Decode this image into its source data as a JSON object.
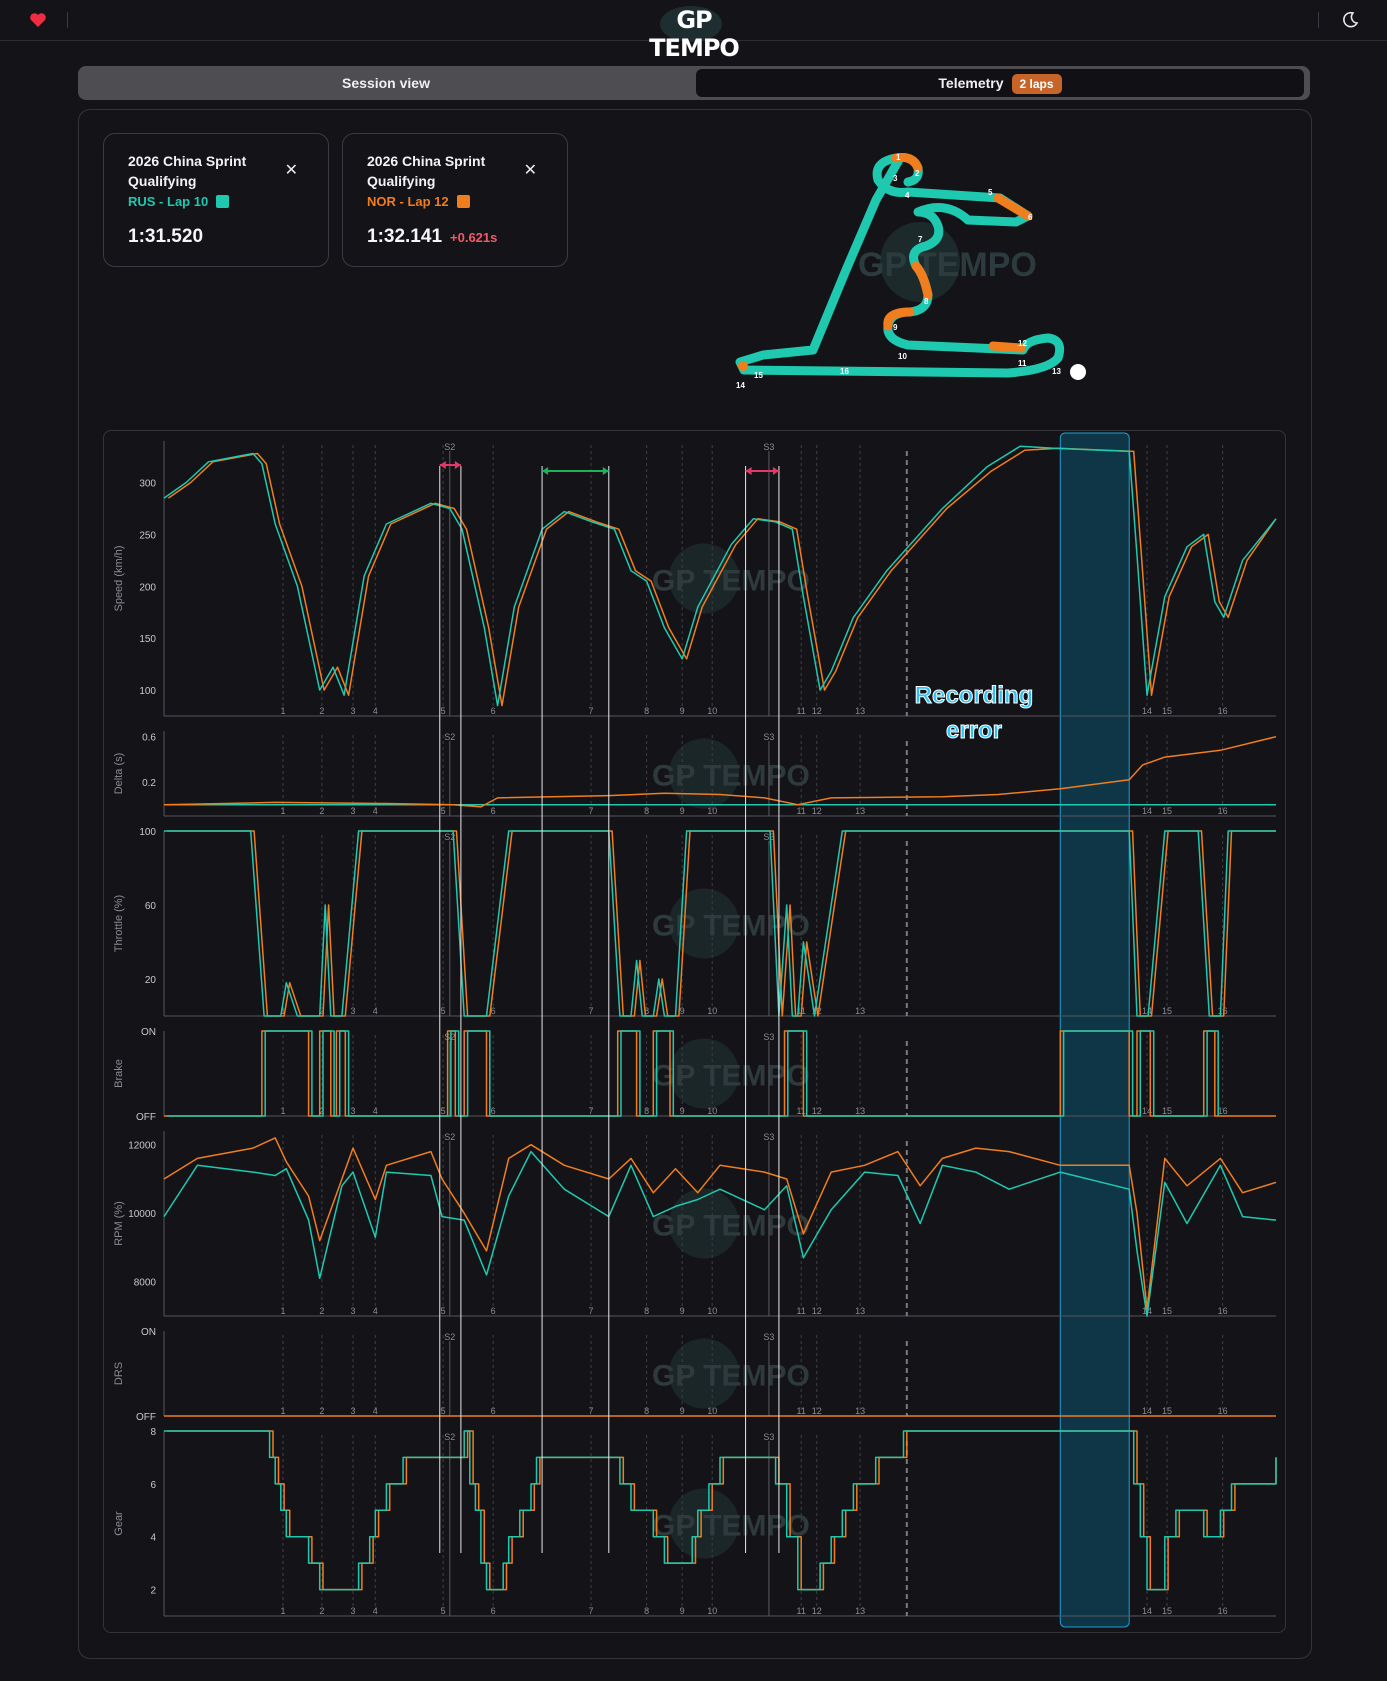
{
  "header": {
    "logo": "GP TEMPO",
    "favorite_icon": "heart-icon",
    "theme_icon": "moon-icon"
  },
  "tabs": {
    "session": "Session view",
    "telemetry": "Telemetry",
    "telemetry_badge": "2 laps"
  },
  "laps": [
    {
      "event": "2026 China Sprint Qualifying",
      "driver_lap": "RUS - Lap 10",
      "time": "1:31.520",
      "delta": "",
      "color": "#1ec9b0"
    },
    {
      "event": "2026 China Sprint Qualifying",
      "driver_lap": "NOR - Lap 12",
      "time": "1:32.141",
      "delta": "+0.621s",
      "color": "#f07d1e"
    }
  ],
  "track_map": {
    "corners": [
      "1",
      "2",
      "3",
      "4",
      "5",
      "6",
      "7",
      "8",
      "9",
      "10",
      "11",
      "12",
      "13",
      "14",
      "15",
      "16"
    ],
    "watermark": "GP TEMPO"
  },
  "annotation": {
    "recording_error": [
      "Recording",
      "error"
    ]
  },
  "chart_data": {
    "type": "line",
    "x_domain": [
      0,
      1
    ],
    "corners": {
      "labels": [
        "1",
        "2",
        "3",
        "4",
        "5",
        "6",
        "7",
        "8",
        "9",
        "10",
        "11",
        "12",
        "13",
        "14",
        "15",
        "16"
      ],
      "x": [
        0.107,
        0.142,
        0.17,
        0.19,
        0.251,
        0.296,
        0.384,
        0.434,
        0.466,
        0.493,
        0.573,
        0.587,
        0.626,
        0.884,
        0.902,
        0.952
      ]
    },
    "sectors": {
      "labels": [
        "S2",
        "S3"
      ],
      "x": [
        0.257,
        0.544
      ]
    },
    "drs_marker_x": 0.668,
    "recording_error_x": [
      0.806,
      0.868
    ],
    "series": [
      {
        "name": "RUS - Lap 10",
        "color": "#1ec9b0"
      },
      {
        "name": "NOR - Lap 12",
        "color": "#f07d1e"
      }
    ],
    "panels": [
      {
        "ylabel": "Speed (km/h)",
        "yticks": [
          "300",
          "250",
          "200",
          "150",
          "100"
        ],
        "ytick_values": [
          300,
          250,
          200,
          150,
          100
        ],
        "ylim": [
          75,
          340
        ],
        "rus": [
          [
            0,
            285
          ],
          [
            0.02,
            300
          ],
          [
            0.04,
            320
          ],
          [
            0.065,
            325
          ],
          [
            0.08,
            328
          ],
          [
            0.088,
            318
          ],
          [
            0.1,
            260
          ],
          [
            0.12,
            200
          ],
          [
            0.14,
            100
          ],
          [
            0.152,
            122
          ],
          [
            0.162,
            95
          ],
          [
            0.18,
            210
          ],
          [
            0.2,
            260
          ],
          [
            0.24,
            280
          ],
          [
            0.257,
            275
          ],
          [
            0.268,
            255
          ],
          [
            0.288,
            160
          ],
          [
            0.3,
            85
          ],
          [
            0.315,
            180
          ],
          [
            0.34,
            255
          ],
          [
            0.36,
            272
          ],
          [
            0.385,
            262
          ],
          [
            0.405,
            255
          ],
          [
            0.42,
            215
          ],
          [
            0.434,
            205
          ],
          [
            0.45,
            160
          ],
          [
            0.466,
            130
          ],
          [
            0.48,
            180
          ],
          [
            0.51,
            240
          ],
          [
            0.53,
            265
          ],
          [
            0.55,
            262
          ],
          [
            0.565,
            255
          ],
          [
            0.575,
            190
          ],
          [
            0.59,
            100
          ],
          [
            0.6,
            118
          ],
          [
            0.62,
            170
          ],
          [
            0.65,
            215
          ],
          [
            0.7,
            275
          ],
          [
            0.74,
            315
          ],
          [
            0.77,
            335
          ],
          [
            0.8,
            333
          ],
          [
            0.868,
            330
          ],
          [
            0.875,
            230
          ],
          [
            0.884,
            95
          ],
          [
            0.9,
            190
          ],
          [
            0.92,
            238
          ],
          [
            0.935,
            250
          ],
          [
            0.945,
            185
          ],
          [
            0.953,
            170
          ],
          [
            0.97,
            225
          ],
          [
            1,
            265
          ]
        ]
      },
      {
        "ylabel": "Delta (s)",
        "yticks": [
          "0.6",
          "0.2"
        ],
        "ytick_values": [
          0.6,
          0.2
        ],
        "ylim": [
          -0.1,
          0.65
        ],
        "rus": [
          [
            0,
            0
          ],
          [
            1,
            0
          ]
        ]
      },
      {
        "ylabel": "Throttle (%)",
        "yticks": [
          "100",
          "60",
          "20"
        ],
        "ytick_values": [
          100,
          60,
          20
        ],
        "ylim": [
          0,
          100
        ]
      },
      {
        "ylabel": "Brake",
        "yticks": [
          "ON",
          "OFF"
        ],
        "ytick_values": [
          1,
          0
        ],
        "ylim": [
          0,
          1
        ]
      },
      {
        "ylabel": "RPM (%)",
        "yticks": [
          "12000",
          "10000",
          "8000"
        ],
        "ytick_values": [
          12000,
          10000,
          8000
        ],
        "ylim": [
          7000,
          12400
        ]
      },
      {
        "ylabel": "DRS",
        "yticks": [
          "ON",
          "OFF"
        ],
        "ytick_values": [
          1,
          0
        ],
        "ylim": [
          0,
          1
        ]
      },
      {
        "ylabel": "Gear",
        "yticks": [
          "8",
          "6",
          "4",
          "2"
        ],
        "ytick_values": [
          8,
          6,
          4,
          2
        ],
        "ylim": [
          1,
          8
        ]
      }
    ]
  }
}
